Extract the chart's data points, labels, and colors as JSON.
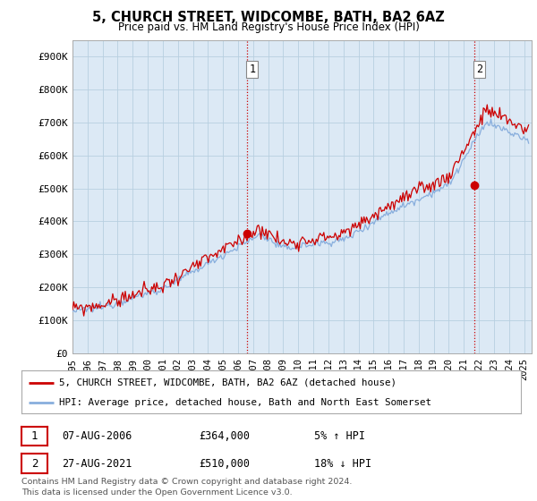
{
  "title": "5, CHURCH STREET, WIDCOMBE, BATH, BA2 6AZ",
  "subtitle": "Price paid vs. HM Land Registry's House Price Index (HPI)",
  "ylabel_ticks": [
    "£0",
    "£100K",
    "£200K",
    "£300K",
    "£400K",
    "£500K",
    "£600K",
    "£700K",
    "£800K",
    "£900K"
  ],
  "ytick_values": [
    0,
    100000,
    200000,
    300000,
    400000,
    500000,
    600000,
    700000,
    800000,
    900000
  ],
  "ylim": [
    0,
    950000
  ],
  "xlim_start": 1995.0,
  "xlim_end": 2025.5,
  "red_line_color": "#cc0000",
  "blue_line_color": "#88aedd",
  "plot_bg_color": "#dce9f5",
  "marker1_x": 2006.583,
  "marker1_y": 364000,
  "marker1_label": "1",
  "marker2_x": 2021.667,
  "marker2_y": 510000,
  "marker2_label": "2",
  "vline1_x": 2006.583,
  "vline2_x": 2021.667,
  "legend_line1": "5, CHURCH STREET, WIDCOMBE, BATH, BA2 6AZ (detached house)",
  "legend_line2": "HPI: Average price, detached house, Bath and North East Somerset",
  "table_row1": [
    "1",
    "07-AUG-2006",
    "£364,000",
    "5% ↑ HPI"
  ],
  "table_row2": [
    "2",
    "27-AUG-2021",
    "£510,000",
    "18% ↓ HPI"
  ],
  "footer": "Contains HM Land Registry data © Crown copyright and database right 2024.\nThis data is licensed under the Open Government Licence v3.0.",
  "background_color": "#ffffff",
  "grid_color": "#b8cfe0"
}
